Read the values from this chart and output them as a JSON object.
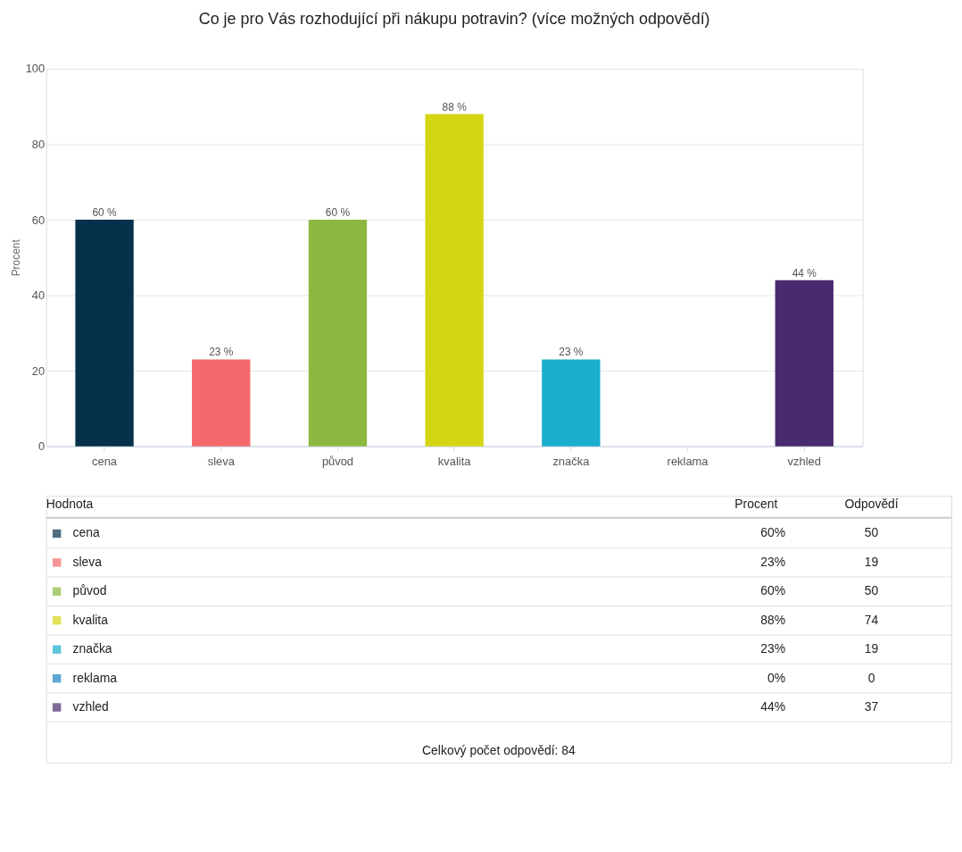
{
  "chart_data": [
    {
      "type": "bar",
      "title": "Co je pro Vás rozhodující při nákupu potravin? (více možných odpovědí)",
      "ylabel": "Procent",
      "categories": [
        "cena",
        "sleva",
        "původ",
        "kvalita",
        "značka",
        "reklama",
        "vzhled"
      ],
      "values": [
        60,
        23,
        60,
        88,
        23,
        0,
        44
      ],
      "value_labels": [
        "60 %",
        "23 %",
        "60 %",
        "88 %",
        "23 %",
        null,
        "44 %"
      ],
      "colors": [
        "#07314a",
        "#f4696b",
        "#8db83f",
        "#d4d613",
        "#1aaecc",
        "#1a85c2",
        "#4a2a6e"
      ],
      "ylim": [
        0,
        100
      ],
      "yticks": [
        0,
        20,
        40,
        60,
        80,
        100
      ],
      "grid": "y"
    },
    {
      "type": "other",
      "data_labels": true,
      "annotations": [
        "Hodnota",
        "Celkový počet odpovědí: 84"
      ],
      "categories": [
        "cena",
        "sleva",
        "původ",
        "kvalita",
        "značka",
        "reklama",
        "vzhled"
      ],
      "colors": [
        "#07314a",
        "#f4696b",
        "#8db83f",
        "#d4d613",
        "#1aaecc",
        "#1a85c2",
        "#4a2a6e"
      ],
      "series": [
        {
          "name": "Procent",
          "values": [
            60,
            23,
            60,
            88,
            23,
            0,
            44
          ],
          "value_labels": [
            "60%",
            "23%",
            "60%",
            "88%",
            "23%",
            "0%",
            "44%"
          ]
        },
        {
          "name": "Odpovědí",
          "values": [
            50,
            19,
            50,
            74,
            19,
            0,
            37
          ]
        }
      ]
    }
  ]
}
